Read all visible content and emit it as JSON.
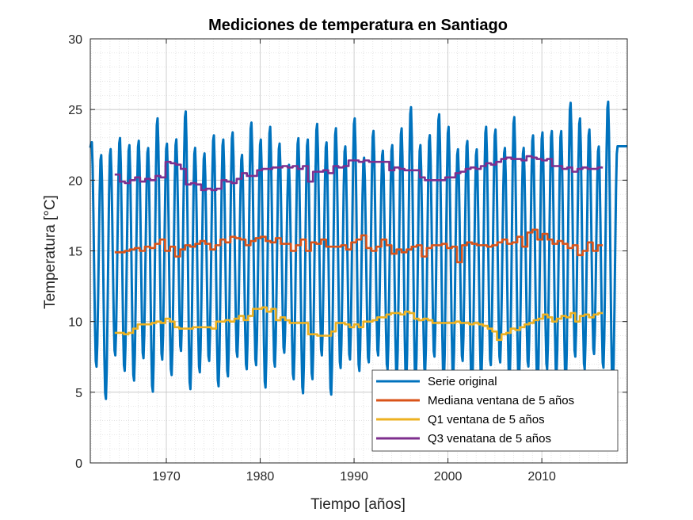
{
  "chart_data": {
    "type": "line",
    "title": "Mediciones de temperatura en Santiago",
    "xlabel": "Tiempo [años]",
    "ylabel": "Temperatura [°C]",
    "xlim": [
      1961.9,
      2019.1
    ],
    "ylim": [
      0,
      30
    ],
    "xticks": [
      1970,
      1980,
      1990,
      2000,
      2010
    ],
    "yticks": [
      0,
      5,
      10,
      15,
      20,
      25,
      30
    ],
    "grid": "major and minor, dotted",
    "legend_position": "bottom-right",
    "series": [
      {
        "name": "Serie original",
        "color": "#0072BD",
        "type": "monthly-seasonal",
        "start_year": 1962,
        "end_year": 2019,
        "summer_peaks": [
          22.8,
          21.9,
          22.3,
          23.1,
          22.6,
          22.9,
          22.4,
          24.5,
          22.7,
          23.0,
          25.0,
          22.4,
          22.0,
          23.3,
          23.0,
          23.5,
          21.9,
          24.2,
          23.0,
          23.9,
          22.7,
          21.2,
          23.1,
          23.0,
          24.1,
          22.8,
          23.8,
          22.5,
          24.5,
          21.7,
          23.6,
          22.2,
          22.6,
          23.8,
          25.3,
          22.6,
          23.3,
          24.8,
          23.9,
          22.3,
          22.9,
          22.3,
          23.9,
          23.7,
          22.4,
          24.6,
          22.4,
          23.3,
          23.5,
          23.6,
          23.6,
          25.6,
          24.5,
          23.7,
          22.5,
          25.7,
          22.4
        ],
        "winter_troughs": [
          6.7,
          4.4,
          7.5,
          6.4,
          5.7,
          7.3,
          4.9,
          7.2,
          6.1,
          7.8,
          5.1,
          6.3,
          7.1,
          5.3,
          6.0,
          7.4,
          6.5,
          6.8,
          5.2,
          6.7,
          7.7,
          5.8,
          4.8,
          5.8,
          7.5,
          4.7,
          6.6,
          7.2,
          6.4,
          7.0,
          7.5,
          6.5,
          5.9,
          5.4,
          5.5,
          6.2,
          7.4,
          5.5,
          6.0,
          7.1,
          4.8,
          5.9,
          6.8,
          7.0,
          5.5,
          5.5,
          6.7,
          5.0,
          6.5,
          6.1,
          5.4,
          7.4,
          6.5,
          7.6,
          6.6,
          5.1
        ]
      },
      {
        "name": "Mediana ventana de 5 años",
        "color": "#D95319",
        "x_start": 1964.5,
        "x_end": 2016.5,
        "y": [
          14.9,
          14.9,
          15.0,
          15.1,
          15.2,
          15.0,
          15.3,
          15.2,
          15.5,
          15.8,
          15.0,
          15.3,
          14.6,
          15.1,
          15.4,
          15.3,
          15.5,
          15.7,
          15.5,
          15.1,
          15.4,
          15.8,
          15.6,
          16.0,
          15.9,
          15.8,
          15.4,
          15.7,
          15.9,
          16.0,
          15.7,
          15.6,
          15.9,
          15.5,
          15.5,
          15.0,
          15.4,
          15.8,
          15.0,
          15.6,
          15.5,
          15.8,
          15.3,
          15.3,
          15.3,
          15.4,
          15.1,
          15.6,
          15.8,
          16.1,
          15.2,
          15.0,
          15.3,
          15.8,
          15.4,
          14.8,
          15.1,
          14.9,
          15.1,
          15.3,
          15.4,
          14.6,
          15.2,
          15.4,
          15.4,
          15.5,
          15.2,
          15.3,
          14.2,
          15.4,
          15.6,
          15.5,
          15.4,
          15.4,
          15.3,
          15.4,
          15.6,
          15.8,
          15.5,
          15.6,
          16.0,
          15.3,
          16.3,
          16.5,
          15.8,
          16.2,
          15.8,
          15.5,
          15.7,
          15.5,
          15.2,
          15.4,
          14.7,
          15.0,
          15.6,
          15.0,
          15.4
        ]
      },
      {
        "name": "Q1 ventana de 5 años",
        "color": "#EDB120",
        "x_start": 1964.5,
        "x_end": 2016.5,
        "y": [
          9.2,
          9.2,
          9.1,
          9.2,
          9.5,
          9.8,
          9.8,
          9.8,
          9.9,
          10.0,
          9.9,
          10.2,
          10.0,
          9.6,
          9.5,
          9.5,
          9.5,
          9.6,
          9.6,
          9.6,
          9.6,
          9.5,
          10.0,
          10.0,
          10.1,
          10.0,
          10.2,
          10.4,
          10.1,
          10.4,
          10.9,
          10.9,
          11.0,
          10.7,
          10.9,
          10.1,
          10.3,
          10.1,
          9.9,
          9.9,
          9.9,
          9.9,
          9.1,
          9.1,
          9.0,
          9.0,
          9.0,
          9.3,
          9.9,
          9.9,
          9.8,
          9.6,
          9.8,
          9.6,
          10.0,
          10.0,
          10.1,
          10.3,
          10.3,
          10.5,
          10.6,
          10.6,
          10.5,
          10.7,
          10.6,
          10.2,
          10.1,
          10.2,
          10.1,
          9.9,
          9.9,
          9.9,
          9.9,
          9.9,
          10.0,
          9.9,
          9.9,
          9.8,
          9.9,
          9.8,
          9.7,
          9.5,
          9.3,
          8.7,
          9.1,
          9.2,
          9.5,
          9.4,
          9.6,
          9.8,
          9.9,
          10.1,
          10.2,
          10.5,
          10.3,
          10.0,
          10.2,
          10.4,
          10.3,
          10.6,
          10.0,
          10.4,
          10.5,
          10.3,
          10.5,
          10.6
        ]
      },
      {
        "name": "Q3 venatana de 5 años",
        "color": "#7E2F8E",
        "x_start": 1964.5,
        "x_end": 2016.5,
        "y": [
          20.4,
          19.9,
          19.8,
          20.0,
          20.2,
          19.9,
          20.1,
          20.0,
          20.3,
          20.2,
          21.3,
          21.2,
          21.1,
          20.8,
          19.7,
          19.8,
          19.7,
          19.3,
          19.4,
          19.3,
          19.4,
          20.0,
          19.9,
          19.8,
          20.1,
          20.5,
          20.3,
          20.3,
          20.7,
          20.8,
          20.8,
          20.9,
          20.9,
          21.0,
          20.9,
          21.0,
          20.8,
          21.0,
          19.9,
          20.6,
          20.6,
          20.7,
          20.5,
          21.0,
          20.9,
          21.0,
          21.4,
          21.4,
          21.3,
          21.4,
          21.3,
          21.3,
          21.3,
          21.3,
          20.7,
          20.9,
          20.8,
          20.7,
          20.7,
          20.7,
          20.2,
          20.0,
          20.0,
          20.0,
          20.0,
          20.2,
          20.2,
          20.5,
          20.6,
          20.8,
          20.9,
          20.8,
          21.0,
          21.2,
          21.1,
          21.3,
          21.5,
          21.6,
          21.5,
          21.5,
          21.4,
          21.7,
          21.6,
          21.5,
          21.4,
          21.5,
          21.0,
          21.0,
          20.8,
          20.9,
          20.6,
          20.8,
          20.9,
          20.8,
          20.8,
          20.9
        ]
      }
    ]
  }
}
